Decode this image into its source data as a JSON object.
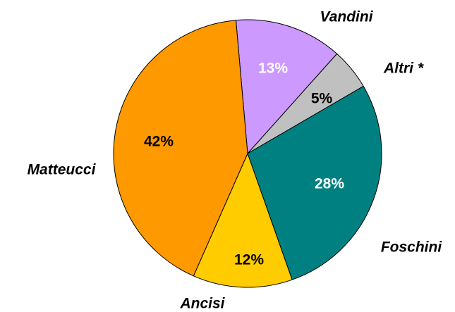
{
  "chart_data": {
    "type": "pie",
    "categories": [
      "Vandini",
      "Altri *",
      "Foschini",
      "Ancisi",
      "Matteucci"
    ],
    "values": [
      13,
      5,
      28,
      12,
      42
    ],
    "value_labels": [
      "13%",
      "5%",
      "28%",
      "12%",
      "42%"
    ],
    "colors": [
      "#cc99ff",
      "#c0c0c0",
      "#008080",
      "#ffcc00",
      "#ff9900"
    ],
    "label_colors": [
      "#ffffff",
      "#000000",
      "#ffffff",
      "#000000",
      "#000000"
    ]
  }
}
